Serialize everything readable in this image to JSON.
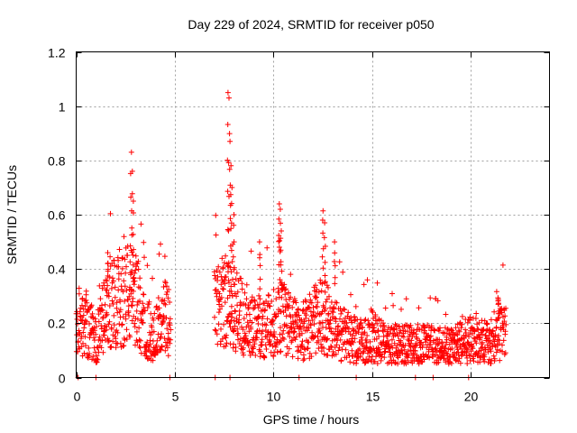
{
  "chart_data": {
    "type": "scatter",
    "title": "Day 229 of 2024, SRMTID for receiver p050",
    "xlabel": "GPS time / hours",
    "ylabel": "SRMTID / TECUs",
    "xlim": [
      0,
      24
    ],
    "ylim": [
      0,
      1.2
    ],
    "xticks": [
      0,
      5,
      10,
      15,
      20
    ],
    "xtick_labels": [
      "0",
      "5",
      "10",
      "15",
      "20"
    ],
    "yticks": [
      0,
      0.2,
      0.4,
      0.6,
      0.8,
      1.0,
      1.2
    ],
    "ytick_labels": [
      "0",
      "0.2",
      "0.4",
      "0.6",
      "0.8",
      "1",
      "1.2"
    ],
    "grid": true,
    "marker": "+",
    "color": "#ff0000",
    "series": [
      {
        "name": "SRMTID",
        "segments": [
          {
            "x_start": 0.0,
            "x_end": 4.8,
            "base": [
              [
                0.0,
                0.16
              ],
              [
                0.5,
                0.2
              ],
              [
                1.0,
                0.13
              ],
              [
                1.5,
                0.24
              ],
              [
                2.0,
                0.28
              ],
              [
                2.5,
                0.31
              ],
              [
                3.0,
                0.3
              ],
              [
                3.5,
                0.18
              ],
              [
                4.0,
                0.16
              ],
              [
                4.5,
                0.22
              ],
              [
                4.8,
                0.2
              ]
            ]
          },
          {
            "x_start": 7.0,
            "x_end": 21.8,
            "base": [
              [
                7.0,
                0.24
              ],
              [
                7.5,
                0.28
              ],
              [
                8.0,
                0.26
              ],
              [
                8.5,
                0.22
              ],
              [
                9.0,
                0.2
              ],
              [
                9.5,
                0.18
              ],
              [
                10.0,
                0.2
              ],
              [
                10.5,
                0.22
              ],
              [
                11.0,
                0.18
              ],
              [
                11.5,
                0.17
              ],
              [
                12.0,
                0.2
              ],
              [
                12.5,
                0.24
              ],
              [
                13.0,
                0.18
              ],
              [
                13.5,
                0.16
              ],
              [
                14.0,
                0.14
              ],
              [
                14.5,
                0.13
              ],
              [
                15.0,
                0.15
              ],
              [
                15.5,
                0.13
              ],
              [
                16.0,
                0.12
              ],
              [
                16.5,
                0.12
              ],
              [
                17.0,
                0.12
              ],
              [
                18.0,
                0.12
              ],
              [
                19.0,
                0.11
              ],
              [
                20.0,
                0.14
              ],
              [
                20.5,
                0.15
              ],
              [
                21.0,
                0.11
              ],
              [
                21.5,
                0.16
              ],
              [
                21.8,
                0.16
              ]
            ]
          }
        ],
        "spikes": [
          {
            "x": 1.6,
            "y": 0.46
          },
          {
            "x": 2.8,
            "y": 0.83
          },
          {
            "x": 2.85,
            "y": 0.76
          },
          {
            "x": 2.9,
            "y": 0.65
          },
          {
            "x": 7.7,
            "y": 1.05
          },
          {
            "x": 7.75,
            "y": 1.03
          },
          {
            "x": 7.8,
            "y": 0.87
          },
          {
            "x": 7.85,
            "y": 0.78
          },
          {
            "x": 7.9,
            "y": 0.7
          },
          {
            "x": 8.0,
            "y": 0.6
          },
          {
            "x": 9.3,
            "y": 0.5
          },
          {
            "x": 10.3,
            "y": 0.64
          },
          {
            "x": 10.35,
            "y": 0.62
          },
          {
            "x": 10.4,
            "y": 0.54
          },
          {
            "x": 12.5,
            "y": 0.58
          },
          {
            "x": 12.6,
            "y": 0.57
          },
          {
            "x": 13.1,
            "y": 0.5
          },
          {
            "x": 21.4,
            "y": 0.27
          }
        ],
        "zero_markers": [
          0.1,
          1.0,
          4.75,
          7.05,
          7.8,
          11.3,
          14.2,
          17.2,
          18.1,
          19.9
        ]
      }
    ]
  }
}
